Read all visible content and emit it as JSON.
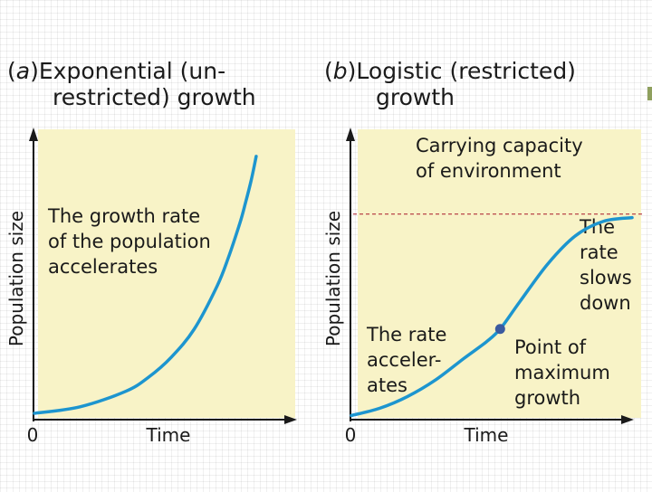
{
  "colors": {
    "panel": "#f8f3c7",
    "curve": "#1d95cf",
    "axis": "#1a1a1a",
    "capacity_line": "#b2333c",
    "max_point": "#3b5aa0",
    "corner_mark": "#8fa05e"
  },
  "icons": {
    "corner_mark": "green-slide-accent-icon"
  },
  "chart_data": [
    {
      "type": "line",
      "panel_label": "a",
      "title_line1_rest": "Exponential (un-",
      "title_line2": "restricted) growth",
      "xlabel": "Time",
      "ylabel": "Population size",
      "x_tick_label": "0",
      "annotation_lines": [
        "The growth rate",
        "of the population",
        "accelerates"
      ],
      "xlim": [
        0,
        10
      ],
      "ylim": [
        0,
        10
      ],
      "series": [
        {
          "name": "Exponential growth",
          "x": [
            0,
            2,
            4,
            5,
            6,
            7,
            8,
            8.5,
            9,
            9.25,
            9.5,
            9.72
          ],
          "y": [
            0.1,
            0.34,
            0.91,
            1.43,
            2.17,
            3.2,
            4.78,
            5.84,
            7.1,
            7.86,
            8.69,
            9.57
          ]
        }
      ]
    },
    {
      "type": "line",
      "panel_label": "b",
      "title_line1_rest": "Logistic (restricted)",
      "title_line2": "growth",
      "xlabel": "Time",
      "ylabel": "Population size",
      "x_tick_label": "0",
      "carrying_capacity_lines": [
        "Carrying capacity",
        "of environment"
      ],
      "carrying_capacity": 8.6,
      "annotations": {
        "left_lines": [
          "The rate",
          "acceler-",
          "ates"
        ],
        "right_lines": [
          "The",
          "rate",
          "slows",
          "down"
        ],
        "point_lines": [
          "Point of",
          "maximum",
          "growth"
        ]
      },
      "point_of_max_growth": {
        "x": 5.3,
        "y": 3.75
      },
      "xlim": [
        0,
        10
      ],
      "ylim": [
        0,
        10
      ],
      "series": [
        {
          "name": "Logistic growth",
          "x": [
            0,
            1,
            2,
            3,
            4,
            4.8,
            5.3,
            6,
            7,
            8,
            9,
            10
          ],
          "y": [
            0.1,
            0.4,
            0.9,
            1.6,
            2.5,
            3.2,
            3.75,
            4.9,
            6.5,
            7.7,
            8.3,
            8.45
          ]
        }
      ]
    }
  ]
}
